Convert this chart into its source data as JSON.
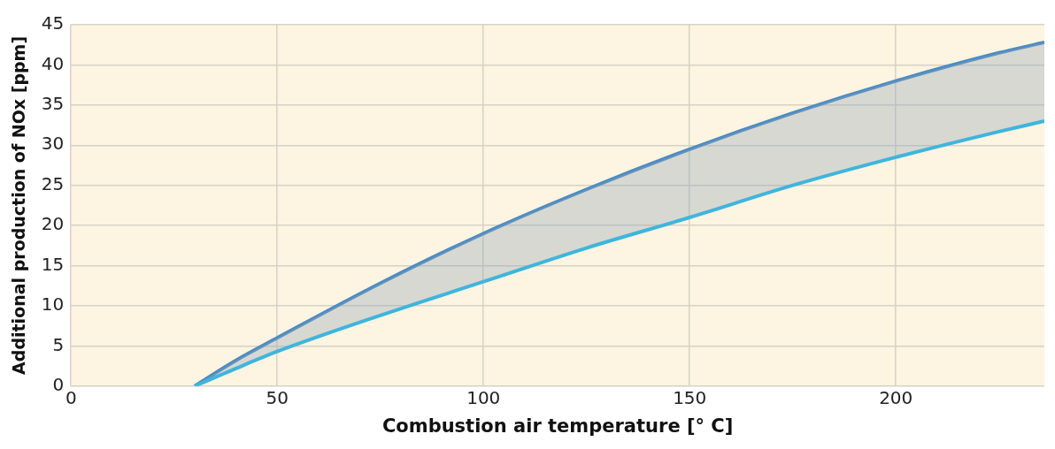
{
  "chart_data": {
    "type": "line",
    "xlabel": "Combustion air temperature [° C]",
    "ylabel": "Additional production of NOx [ppm]",
    "x": [
      30,
      40,
      50,
      75,
      100,
      125,
      150,
      175,
      200,
      225,
      236
    ],
    "series": [
      {
        "color": "#4a8bc2",
        "values": [
          0,
          3.2,
          6,
          12.8,
          19,
          24.5,
          29.5,
          34,
          38,
          41.5,
          42.8
        ]
      },
      {
        "color": "#3fb5dc",
        "values": [
          0,
          2.2,
          4.3,
          8.8,
          13,
          17.2,
          21,
          25,
          28.5,
          31.7,
          33
        ]
      }
    ],
    "xlim": [
      0,
      236
    ],
    "xticks": [
      0,
      50,
      100,
      150,
      200
    ],
    "ylim": [
      0,
      45
    ],
    "yticks": [
      0,
      5,
      10,
      15,
      20,
      25,
      30,
      35,
      40,
      45
    ],
    "grid": true,
    "legend": false,
    "marker": "none",
    "line_style": "solid"
  }
}
